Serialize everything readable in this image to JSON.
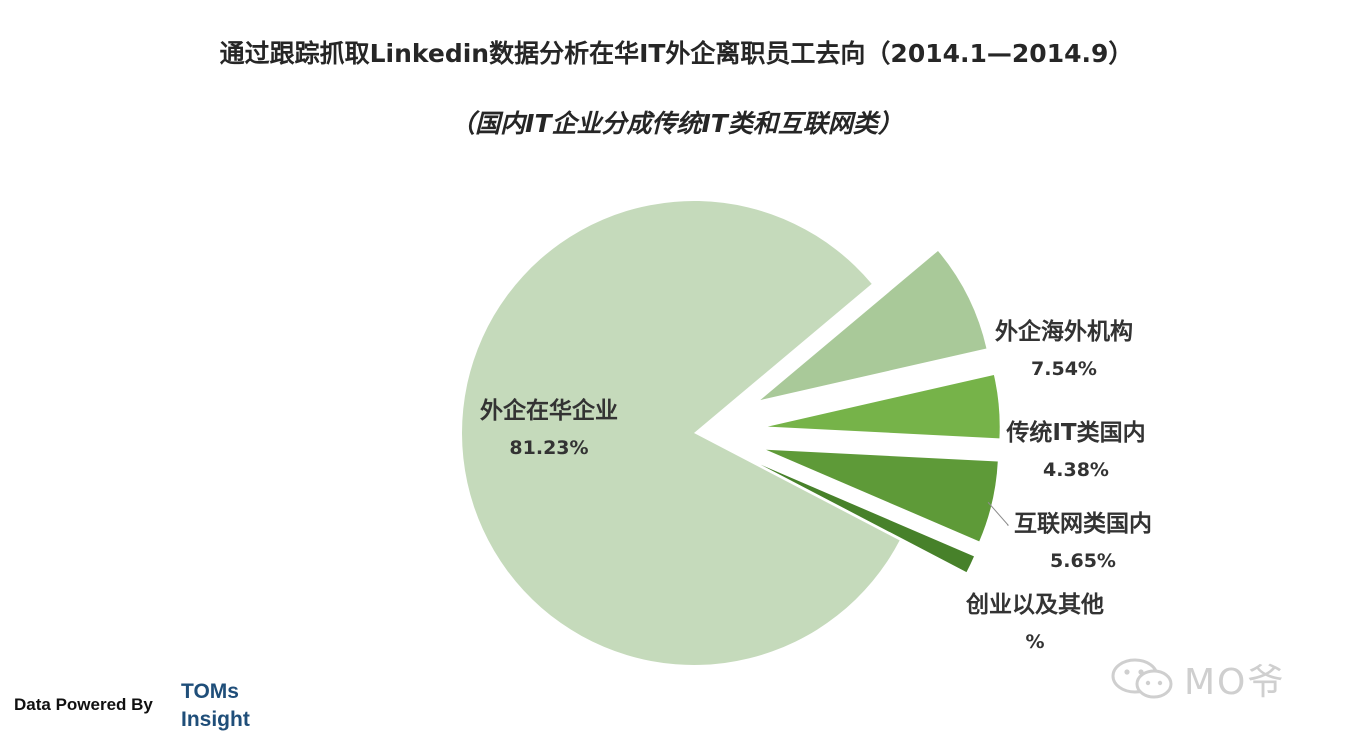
{
  "chart_data": {
    "type": "pie",
    "title": "通过跟踪抓取Linkedin数据分析在华IT外企离职员工去向（2014.1—2014.9）",
    "subtitle": "（国内IT企业分成传统IT类和互联网类）",
    "slices": [
      {
        "label": "外企海外机构",
        "value_label": "7.54%",
        "value": 7.54,
        "color": "#a9c999"
      },
      {
        "label": "传统IT类国内",
        "value_label": "4.38%",
        "value": 4.38,
        "color": "#76b349"
      },
      {
        "label": "互联网类国内",
        "value_label": "5.65%",
        "value": 5.65,
        "color": "#5e9a38"
      },
      {
        "label": "创业以及其他",
        "value_label": "%",
        "value": 1.2,
        "color": "#47812a"
      },
      {
        "label": "外企在华企业",
        "value_label": "81.23%",
        "value": 81.23,
        "color": "#c5dabb"
      }
    ],
    "exploded": [
      "外企海外机构",
      "传统IT类国内",
      "互联网类国内",
      "创业以及其他"
    ],
    "legend": "none"
  },
  "footer": {
    "data_powered_by": "Data Powered By",
    "brand_line1": "TOMs",
    "brand_line2": "Insight"
  },
  "watermark": {
    "icon": "wechat-icon",
    "text": "MO爷"
  }
}
